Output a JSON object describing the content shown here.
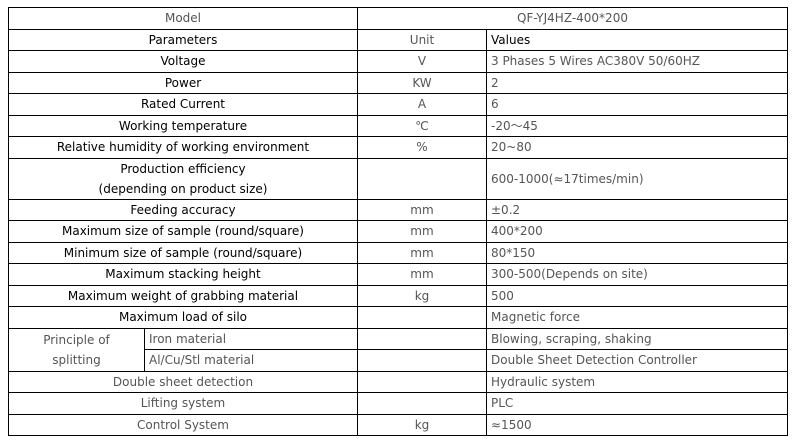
{
  "model": {
    "label": "Model",
    "value": "QF-YJ4HZ-400*200"
  },
  "header": {
    "parameters": "Parameters",
    "unit": "Unit",
    "values": "Values"
  },
  "rows": [
    {
      "param": "Voltage",
      "unit": "V",
      "value": "3 Phases 5 Wires AC380V 50/60HZ"
    },
    {
      "param": "Power",
      "unit": "KW",
      "value": "2"
    },
    {
      "param": "Rated Current",
      "unit": "A",
      "value": "6"
    },
    {
      "param": "Working temperature",
      "unit": "℃",
      "value": "-20～45"
    },
    {
      "param": "Relative humidity of working environment",
      "unit": "%",
      "value": "20~80"
    },
    {
      "param": "Production efficiency",
      "param2": "(depending on product size)",
      "unit": "",
      "value": "600-1000(≈17times/min)"
    },
    {
      "param": "Feeding accuracy",
      "unit": "mm",
      "value": "±0.2"
    },
    {
      "param": "Maximum size of sample (round/square)",
      "unit": "mm",
      "value": "400*200"
    },
    {
      "param": "Minimum size of sample (round/square)",
      "unit": "mm",
      "value": "80*150"
    },
    {
      "param": "Maximum stacking height",
      "unit": "mm",
      "value": "300-500(Depends on site)"
    },
    {
      "param": "Maximum weight of grabbing material",
      "unit": "kg",
      "value": "500"
    },
    {
      "param": "Maximum load of silo",
      "unit": "",
      "value": "Magnetic force"
    }
  ],
  "splitting": {
    "label1": "Principle of",
    "label2": "splitting",
    "sub": [
      {
        "param": "Iron material",
        "unit": "",
        "value": "Blowing, scraping, shaking"
      },
      {
        "param": "Al/Cu/Stl material",
        "unit": "",
        "value": "Double Sheet Detection Controller"
      }
    ]
  },
  "tail": [
    {
      "param": "Double sheet detection",
      "unit": "",
      "value": "Hydraulic system"
    },
    {
      "param": "Lifting system",
      "unit": "",
      "value": "PLC"
    },
    {
      "param": "Control System",
      "unit": "kg",
      "value": "≈1500"
    }
  ]
}
